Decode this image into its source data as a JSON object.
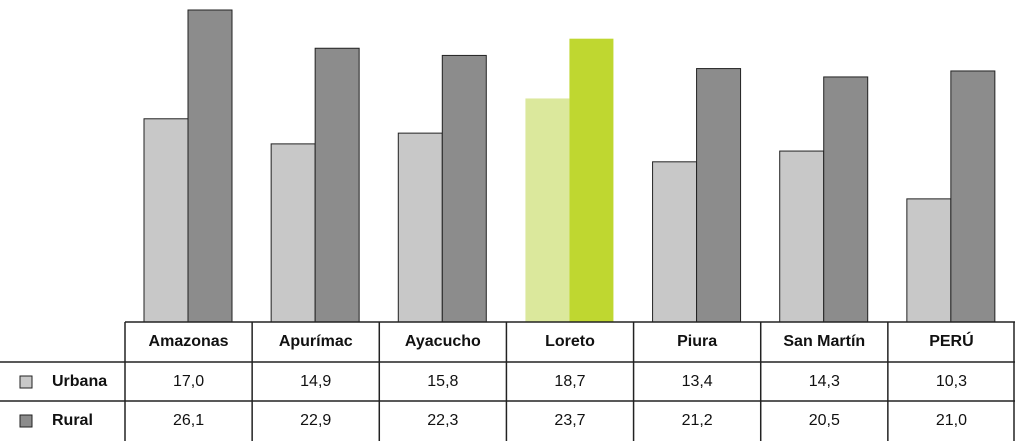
{
  "chart_data": {
    "type": "bar",
    "categories": [
      "Amazonas",
      "Apurímac",
      "Ayacucho",
      "Loreto",
      "Piura",
      "San Martín",
      "PERÚ"
    ],
    "series": [
      {
        "name": "Urbana",
        "color": "#c8c8c8",
        "highlight_color": "#dbe89c",
        "values": [
          17.0,
          14.9,
          15.8,
          18.7,
          13.4,
          14.3,
          10.3
        ],
        "value_labels": [
          "17,0",
          "14,9",
          "15,8",
          "18,7",
          "13,4",
          "14,3",
          "10,3"
        ]
      },
      {
        "name": "Rural",
        "color": "#8c8c8c",
        "highlight_color": "#bfd730",
        "values": [
          26.1,
          22.9,
          22.3,
          23.7,
          21.2,
          20.5,
          21.0
        ],
        "value_labels": [
          "26,1",
          "22,9",
          "22,3",
          "23,7",
          "21,2",
          "20,5",
          "21,0"
        ]
      }
    ],
    "highlight_index": 3
  }
}
